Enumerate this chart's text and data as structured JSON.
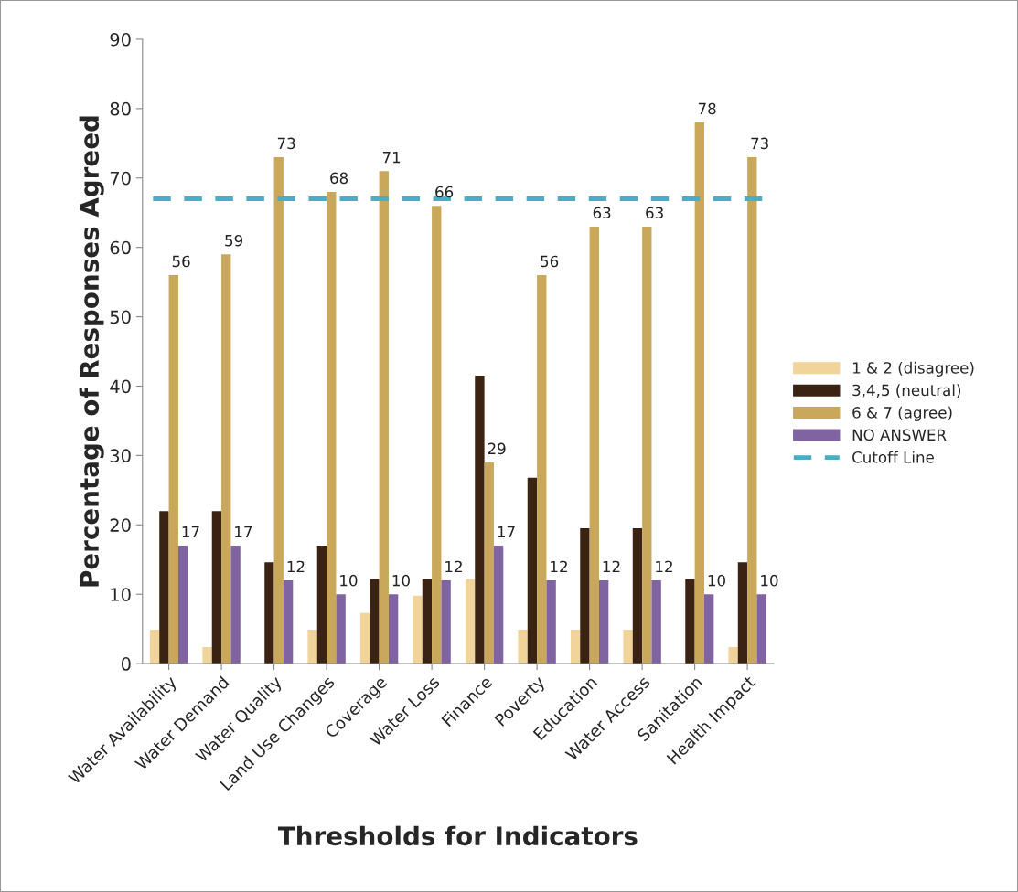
{
  "chart_data": {
    "type": "bar",
    "xlabel": "Thresholds for Indicators",
    "ylabel": "Percentage of Responses Agreed",
    "categories": [
      "Water Availability",
      "Water Demand",
      "Water Quality",
      "Land Use Changes",
      "Coverage",
      "Water Loss",
      "Finance",
      "Poverty",
      "Education",
      "Water Access",
      "Sanitation",
      "Health Impact"
    ],
    "series": [
      {
        "name": "1 & 2 (disagree)",
        "color": "#f0d49a",
        "values": [
          4.9,
          2.4,
          null,
          4.9,
          7.3,
          9.8,
          12.2,
          4.9,
          4.9,
          4.9,
          null,
          2.4
        ]
      },
      {
        "name": "3,4,5 (neutral)",
        "color": "#3b2314",
        "values": [
          22,
          22,
          14.6,
          17,
          12.2,
          12.2,
          41.5,
          26.8,
          19.5,
          19.5,
          12.2,
          14.6
        ]
      },
      {
        "name": "6 & 7 (agree)",
        "color": "#c9a85c",
        "values": [
          56,
          59,
          73,
          68,
          71,
          66,
          29,
          56,
          63,
          63,
          78,
          73
        ],
        "value_labels": [
          "56",
          "59",
          "73",
          "68",
          "71",
          "66",
          "29",
          "56",
          "63",
          "63",
          "78",
          "73"
        ]
      },
      {
        "name": "NO ANSWER",
        "color": "#8064a2",
        "values": [
          17,
          17,
          12,
          10,
          10,
          12,
          17,
          12,
          12,
          12,
          10,
          10
        ],
        "value_labels": [
          "17",
          "17",
          "12",
          "10",
          "10",
          "12",
          "17",
          "12",
          "12",
          "12",
          "10",
          "10"
        ]
      }
    ],
    "ref_lines": [
      {
        "axis": "y",
        "value": 67,
        "label": "Cutoff Line",
        "color": "#4bacc6",
        "line_style": "dashed"
      }
    ],
    "ylim": [
      0,
      90
    ],
    "yticks": [
      0,
      10,
      20,
      30,
      40,
      50,
      60,
      70,
      80,
      90
    ],
    "grid": false,
    "legend": "right"
  }
}
